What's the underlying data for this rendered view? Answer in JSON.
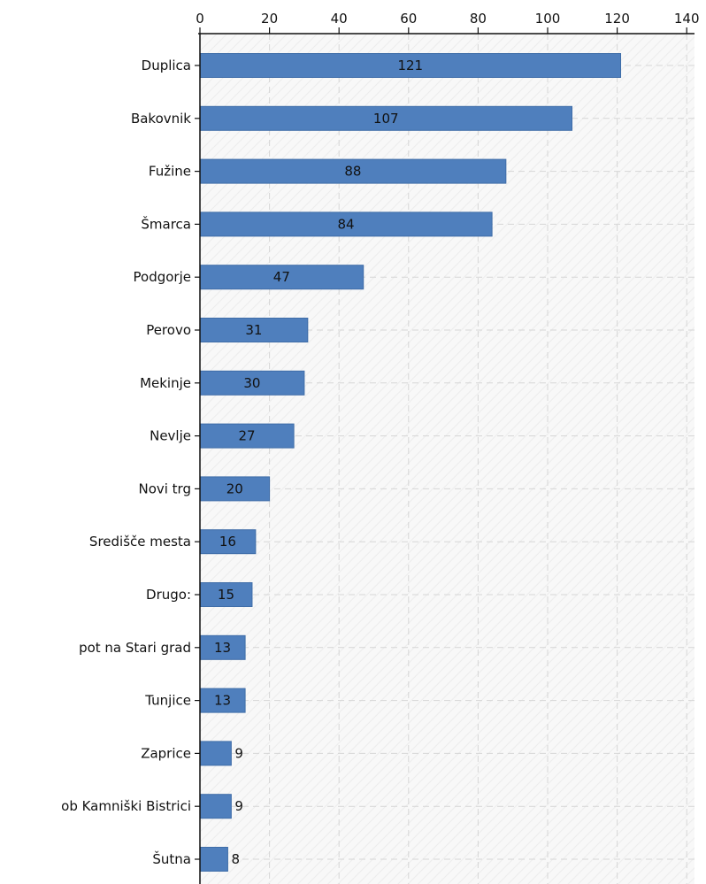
{
  "chart_data": {
    "type": "bar",
    "orientation": "horizontal",
    "categories": [
      "Duplica",
      "Bakovnik",
      "Fužine",
      "Šmarca",
      "Podgorje",
      "Perovo",
      "Mekinje",
      "Nevlje",
      "Novi trg",
      "Središče mesta",
      "Drugo:",
      "pot na Stari grad",
      "Tunjice",
      "Zaprice",
      "ob Kamniški Bistrici",
      "Šutna"
    ],
    "values": [
      121,
      107,
      88,
      84,
      47,
      31,
      30,
      27,
      20,
      16,
      15,
      13,
      13,
      9,
      9,
      8
    ],
    "value_labels": [
      "121",
      "107",
      "88",
      "84",
      "47",
      "31",
      "30",
      "27",
      "20",
      "16",
      "15",
      "13",
      "13",
      "9",
      "9",
      "8"
    ],
    "xlim": [
      0,
      140
    ],
    "xticks": [
      0,
      20,
      40,
      60,
      80,
      100,
      120,
      140
    ],
    "xtick_labels": [
      "0",
      "20",
      "40",
      "60",
      "80",
      "100",
      "120",
      "140"
    ],
    "axis_position": "top",
    "grid": true,
    "legend": "none",
    "title": "",
    "xlabel": "",
    "ylabel": "",
    "colors": {
      "bar": "#4f7fbd",
      "plot_background": "#f7f7f7",
      "grid": "#d6d6d6"
    }
  }
}
